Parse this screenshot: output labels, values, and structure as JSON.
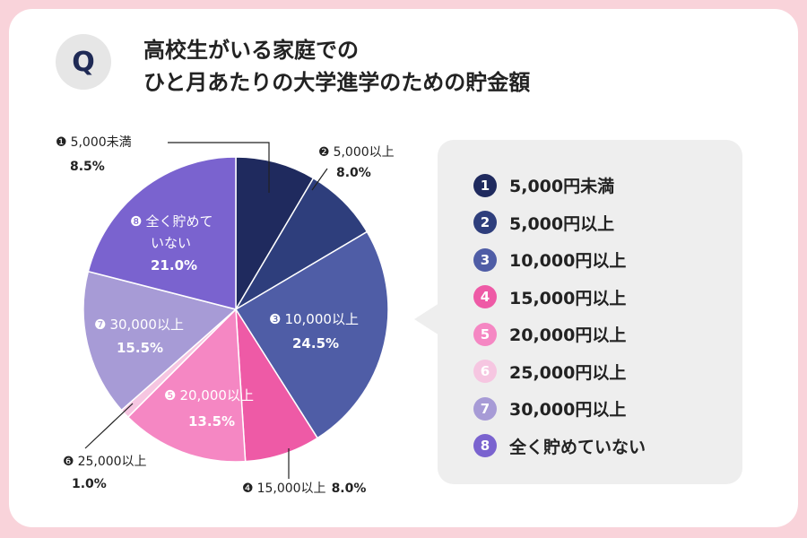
{
  "question": {
    "badge": "Q",
    "title_line1": "高校生がいる家庭での",
    "title_line2": "ひと月あたりの大学進学のための貯金額"
  },
  "chart_data": {
    "type": "pie",
    "start_angle_deg": 0,
    "direction": "clockwise",
    "slices": [
      {
        "num": "1",
        "marker": "❶",
        "label": "5,000未満",
        "legend": "5,000円未満",
        "value": 8.5,
        "value_label": "8.5%",
        "color": "#1f2a5e"
      },
      {
        "num": "2",
        "marker": "❷",
        "label": "5,000以上",
        "legend": "5,000円以上",
        "value": 8.0,
        "value_label": "8.0%",
        "color": "#2e3e7c"
      },
      {
        "num": "3",
        "marker": "❸",
        "label": "10,000以上",
        "legend": "10,000円以上",
        "value": 24.5,
        "value_label": "24.5%",
        "color": "#4f5da6"
      },
      {
        "num": "4",
        "marker": "❹",
        "label": "15,000以上",
        "legend": "15,000円以上",
        "value": 8.0,
        "value_label": "8.0%",
        "color": "#ee5aa6"
      },
      {
        "num": "5",
        "marker": "❺",
        "label": "20,000以上",
        "legend": "20,000円以上",
        "value": 13.5,
        "value_label": "13.5%",
        "color": "#f587c3"
      },
      {
        "num": "6",
        "marker": "❻",
        "label": "25,000以上",
        "legend": "25,000円以上",
        "value": 1.0,
        "value_label": "1.0%",
        "color": "#f6c6e1"
      },
      {
        "num": "7",
        "marker": "❼",
        "label": "30,000以上",
        "legend": "30,000円以上",
        "value": 15.5,
        "value_label": "15.5%",
        "color": "#a79bd6"
      },
      {
        "num": "8",
        "marker": "❽",
        "label": "全く貯めて",
        "label_line2": "いない",
        "legend": "全く貯めていない",
        "value": 21.0,
        "value_label": "21.0%",
        "color": "#7a63cf"
      }
    ]
  }
}
